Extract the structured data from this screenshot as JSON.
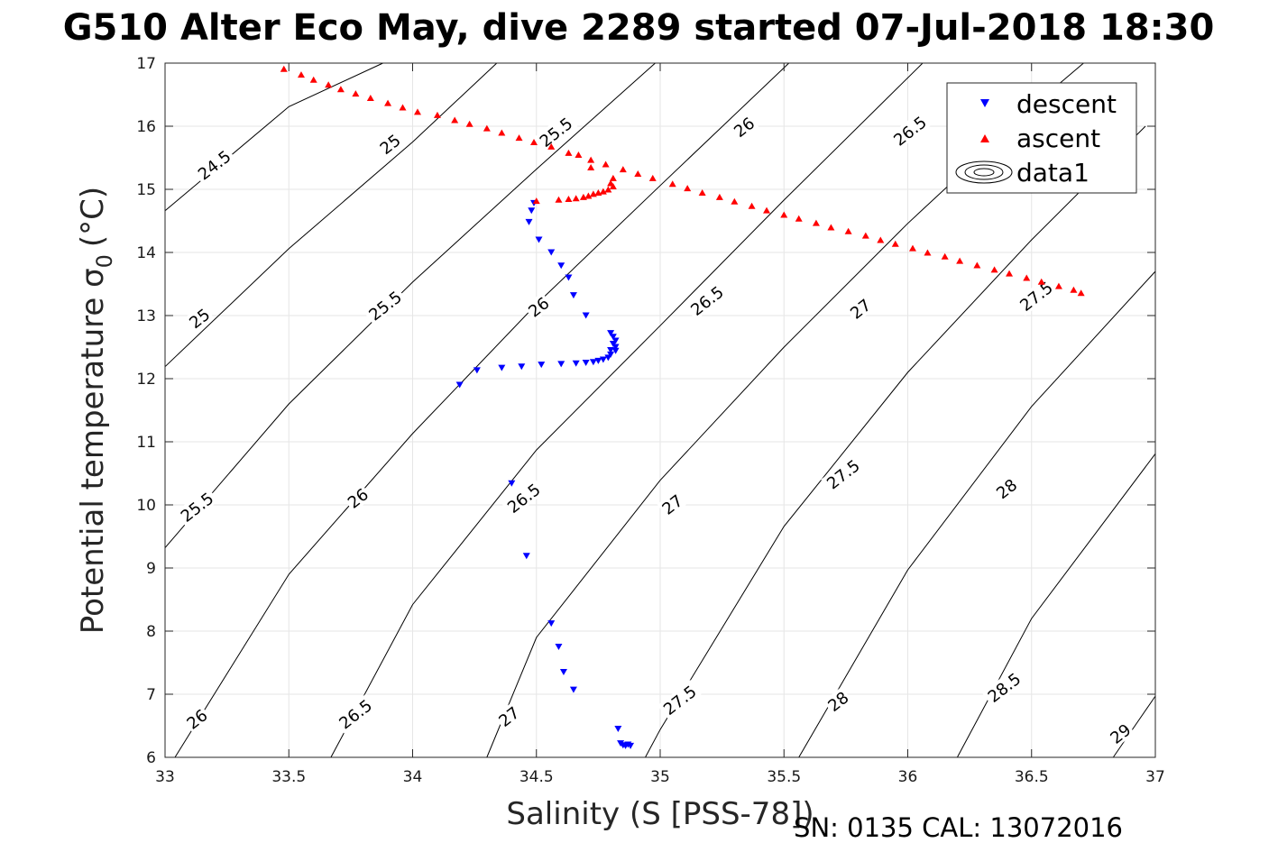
{
  "chart_data": {
    "type": "scatter",
    "title": "G510 Alter Eco May, dive 2289 started 07-Jul-2018 18:30",
    "xlabel": "Salinity (S [PSS-78])",
    "ylabel": "Potential temperature σ",
    "ylabel_sub": "0",
    "ylabel_unit": "(°C)",
    "footer": "SN: 0135  CAL: 13072016",
    "xlim": [
      33,
      37
    ],
    "ylim": [
      6,
      17
    ],
    "grid": true,
    "legend_position": "top-right",
    "x_ticks": [
      33,
      33.5,
      34,
      34.5,
      35,
      35.5,
      36,
      36.5,
      37
    ],
    "x_tick_labels": [
      "33",
      "33.5",
      "34",
      "34.5",
      "35",
      "35.5",
      "36",
      "36.5",
      "37"
    ],
    "y_ticks": [
      6,
      7,
      8,
      9,
      10,
      11,
      12,
      13,
      14,
      15,
      16,
      17
    ],
    "y_tick_labels": [
      "6",
      "7",
      "8",
      "9",
      "10",
      "11",
      "12",
      "13",
      "14",
      "15",
      "16",
      "17"
    ],
    "legend": [
      {
        "label": "descent",
        "marker": "down-triangle",
        "color": "#0000ff"
      },
      {
        "label": "ascent",
        "marker": "up-triangle",
        "color": "#ff0000"
      },
      {
        "label": "data1",
        "marker": "contour",
        "color": "#000000"
      }
    ],
    "contours": [
      {
        "level": "24.5",
        "points": [
          [
            33,
            14.66
          ],
          [
            33.5,
            16.31
          ],
          [
            33.88,
            17
          ]
        ]
      },
      {
        "level": "25",
        "points": [
          [
            33,
            12.19
          ],
          [
            33.5,
            14.06
          ],
          [
            34,
            15.75
          ],
          [
            34.34,
            17
          ]
        ]
      },
      {
        "level": "25.5",
        "points": [
          [
            33,
            9.32
          ],
          [
            33.5,
            11.6
          ],
          [
            34,
            13.53
          ],
          [
            34.5,
            15.32
          ],
          [
            34.98,
            17
          ]
        ]
      },
      {
        "level": "26",
        "points": [
          [
            33.04,
            6
          ],
          [
            33.5,
            8.9
          ],
          [
            34,
            11.13
          ],
          [
            34.5,
            13.18
          ],
          [
            35,
            15.06
          ],
          [
            35.52,
            17
          ]
        ]
      },
      {
        "level": "26.5",
        "points": [
          [
            33.67,
            6
          ],
          [
            34,
            8.42
          ],
          [
            34.5,
            10.87
          ],
          [
            35,
            12.84
          ],
          [
            35.5,
            14.83
          ],
          [
            36.06,
            17
          ]
        ]
      },
      {
        "level": "27",
        "points": [
          [
            34.3,
            6
          ],
          [
            34.5,
            7.9
          ],
          [
            35,
            10.39
          ],
          [
            35.5,
            12.5
          ],
          [
            36,
            14.46
          ],
          [
            36.56,
            16.5
          ],
          [
            36.71,
            17
          ]
        ]
      },
      {
        "level": "27.5",
        "points": [
          [
            34.94,
            6
          ],
          [
            35,
            6.44
          ],
          [
            35.5,
            9.66
          ],
          [
            36,
            12.1
          ],
          [
            36.5,
            14.2
          ],
          [
            36.96,
            16
          ]
        ]
      },
      {
        "level": "28",
        "points": [
          [
            35.56,
            6
          ],
          [
            36,
            8.97
          ],
          [
            36.5,
            11.56
          ],
          [
            37,
            13.7
          ]
        ]
      },
      {
        "level": "28.5",
        "points": [
          [
            36.2,
            6
          ],
          [
            36.5,
            8.2
          ],
          [
            37,
            10.81
          ]
        ]
      },
      {
        "level": "29",
        "points": [
          [
            36.83,
            6
          ],
          [
            37,
            6.97
          ]
        ]
      }
    ],
    "contour_labels": [
      {
        "text": "24.5",
        "x": 33.2,
        "y": 15.38
      },
      {
        "text": "25",
        "x": 33.14,
        "y": 12.95
      },
      {
        "text": "25",
        "x": 33.91,
        "y": 15.71
      },
      {
        "text": "25.5",
        "x": 33.13,
        "y": 9.96
      },
      {
        "text": "25.5",
        "x": 33.89,
        "y": 13.15
      },
      {
        "text": "25.5",
        "x": 34.58,
        "y": 15.9
      },
      {
        "text": "26",
        "x": 33.13,
        "y": 6.6
      },
      {
        "text": "26",
        "x": 33.78,
        "y": 10.1
      },
      {
        "text": "26",
        "x": 34.51,
        "y": 13.13
      },
      {
        "text": "26",
        "x": 35.34,
        "y": 15.98
      },
      {
        "text": "26.5",
        "x": 33.77,
        "y": 6.68
      },
      {
        "text": "26.5",
        "x": 34.45,
        "y": 10.1
      },
      {
        "text": "26.5",
        "x": 35.19,
        "y": 13.23
      },
      {
        "text": "26.5",
        "x": 36.01,
        "y": 15.92
      },
      {
        "text": "27",
        "x": 34.39,
        "y": 6.64
      },
      {
        "text": "27",
        "x": 35.05,
        "y": 10.0
      },
      {
        "text": "27",
        "x": 35.81,
        "y": 13.1
      },
      {
        "text": "27.5",
        "x": 35.08,
        "y": 6.9
      },
      {
        "text": "27.5",
        "x": 35.74,
        "y": 10.48
      },
      {
        "text": "27.5",
        "x": 36.52,
        "y": 13.3
      },
      {
        "text": "28",
        "x": 35.72,
        "y": 6.88
      },
      {
        "text": "28",
        "x": 36.4,
        "y": 10.25
      },
      {
        "text": "28.5",
        "x": 36.39,
        "y": 7.1
      },
      {
        "text": "29",
        "x": 36.86,
        "y": 6.37
      }
    ],
    "series": [
      {
        "name": "descent",
        "marker": "down-triangle",
        "color": "#0000ff",
        "points": [
          [
            34.49,
            14.78
          ],
          [
            34.48,
            14.66
          ],
          [
            34.47,
            14.48
          ],
          [
            34.51,
            14.2
          ],
          [
            34.56,
            14.0
          ],
          [
            34.6,
            13.79
          ],
          [
            34.63,
            13.6
          ],
          [
            34.65,
            13.32
          ],
          [
            34.7,
            13.0
          ],
          [
            34.8,
            12.72
          ],
          [
            34.81,
            12.66
          ],
          [
            34.82,
            12.6
          ],
          [
            34.81,
            12.55
          ],
          [
            34.82,
            12.5
          ],
          [
            34.8,
            12.45
          ],
          [
            34.82,
            12.44
          ],
          [
            34.8,
            12.38
          ],
          [
            34.79,
            12.33
          ],
          [
            34.77,
            12.3
          ],
          [
            34.75,
            12.28
          ],
          [
            34.73,
            12.26
          ],
          [
            34.7,
            12.25
          ],
          [
            34.66,
            12.24
          ],
          [
            34.6,
            12.23
          ],
          [
            34.52,
            12.22
          ],
          [
            34.44,
            12.19
          ],
          [
            34.36,
            12.17
          ],
          [
            34.26,
            12.13
          ],
          [
            34.19,
            11.9
          ],
          [
            34.4,
            10.34
          ],
          [
            34.46,
            9.19
          ],
          [
            34.56,
            8.12
          ],
          [
            34.59,
            7.75
          ],
          [
            34.61,
            7.35
          ],
          [
            34.65,
            7.07
          ],
          [
            34.83,
            6.45
          ],
          [
            34.84,
            6.22
          ],
          [
            34.85,
            6.19
          ],
          [
            34.86,
            6.18
          ],
          [
            34.87,
            6.2
          ],
          [
            34.88,
            6.18
          ]
        ]
      },
      {
        "name": "ascent",
        "marker": "up-triangle",
        "color": "#ff0000",
        "points": [
          [
            33.48,
            16.91
          ],
          [
            33.55,
            16.82
          ],
          [
            33.6,
            16.74
          ],
          [
            33.66,
            16.66
          ],
          [
            33.71,
            16.59
          ],
          [
            33.77,
            16.52
          ],
          [
            33.83,
            16.45
          ],
          [
            33.9,
            16.37
          ],
          [
            33.96,
            16.3
          ],
          [
            34.02,
            16.23
          ],
          [
            34.1,
            16.18
          ],
          [
            34.17,
            16.1
          ],
          [
            34.23,
            16.04
          ],
          [
            34.3,
            15.97
          ],
          [
            34.36,
            15.9
          ],
          [
            34.43,
            15.82
          ],
          [
            34.49,
            15.75
          ],
          [
            34.56,
            15.68
          ],
          [
            34.63,
            15.58
          ],
          [
            34.67,
            15.55
          ],
          [
            34.72,
            15.47
          ],
          [
            34.78,
            15.4
          ],
          [
            34.85,
            15.32
          ],
          [
            34.91,
            15.25
          ],
          [
            34.97,
            15.18
          ],
          [
            35.05,
            15.09
          ],
          [
            35.11,
            15.02
          ],
          [
            35.17,
            14.95
          ],
          [
            35.24,
            14.88
          ],
          [
            35.3,
            14.81
          ],
          [
            35.37,
            14.74
          ],
          [
            35.43,
            14.67
          ],
          [
            35.5,
            14.6
          ],
          [
            35.56,
            14.54
          ],
          [
            35.63,
            14.47
          ],
          [
            35.69,
            14.4
          ],
          [
            35.76,
            14.34
          ],
          [
            35.83,
            14.27
          ],
          [
            35.89,
            14.2
          ],
          [
            35.95,
            14.14
          ],
          [
            36.02,
            14.07
          ],
          [
            36.08,
            14.0
          ],
          [
            36.15,
            13.94
          ],
          [
            36.21,
            13.87
          ],
          [
            36.28,
            13.8
          ],
          [
            36.35,
            13.73
          ],
          [
            36.41,
            13.67
          ],
          [
            36.48,
            13.6
          ],
          [
            36.54,
            13.54
          ],
          [
            36.61,
            13.47
          ],
          [
            36.67,
            13.41
          ],
          [
            36.7,
            13.36
          ],
          [
            34.72,
            15.35
          ],
          [
            34.81,
            15.18
          ],
          [
            34.8,
            15.1
          ],
          [
            34.81,
            15.05
          ],
          [
            34.79,
            15.0
          ],
          [
            34.77,
            14.97
          ],
          [
            34.75,
            14.95
          ],
          [
            34.73,
            14.93
          ],
          [
            34.71,
            14.9
          ],
          [
            34.69,
            14.88
          ],
          [
            34.66,
            14.86
          ],
          [
            34.63,
            14.85
          ],
          [
            34.59,
            14.84
          ],
          [
            34.5,
            14.82
          ]
        ]
      }
    ]
  }
}
